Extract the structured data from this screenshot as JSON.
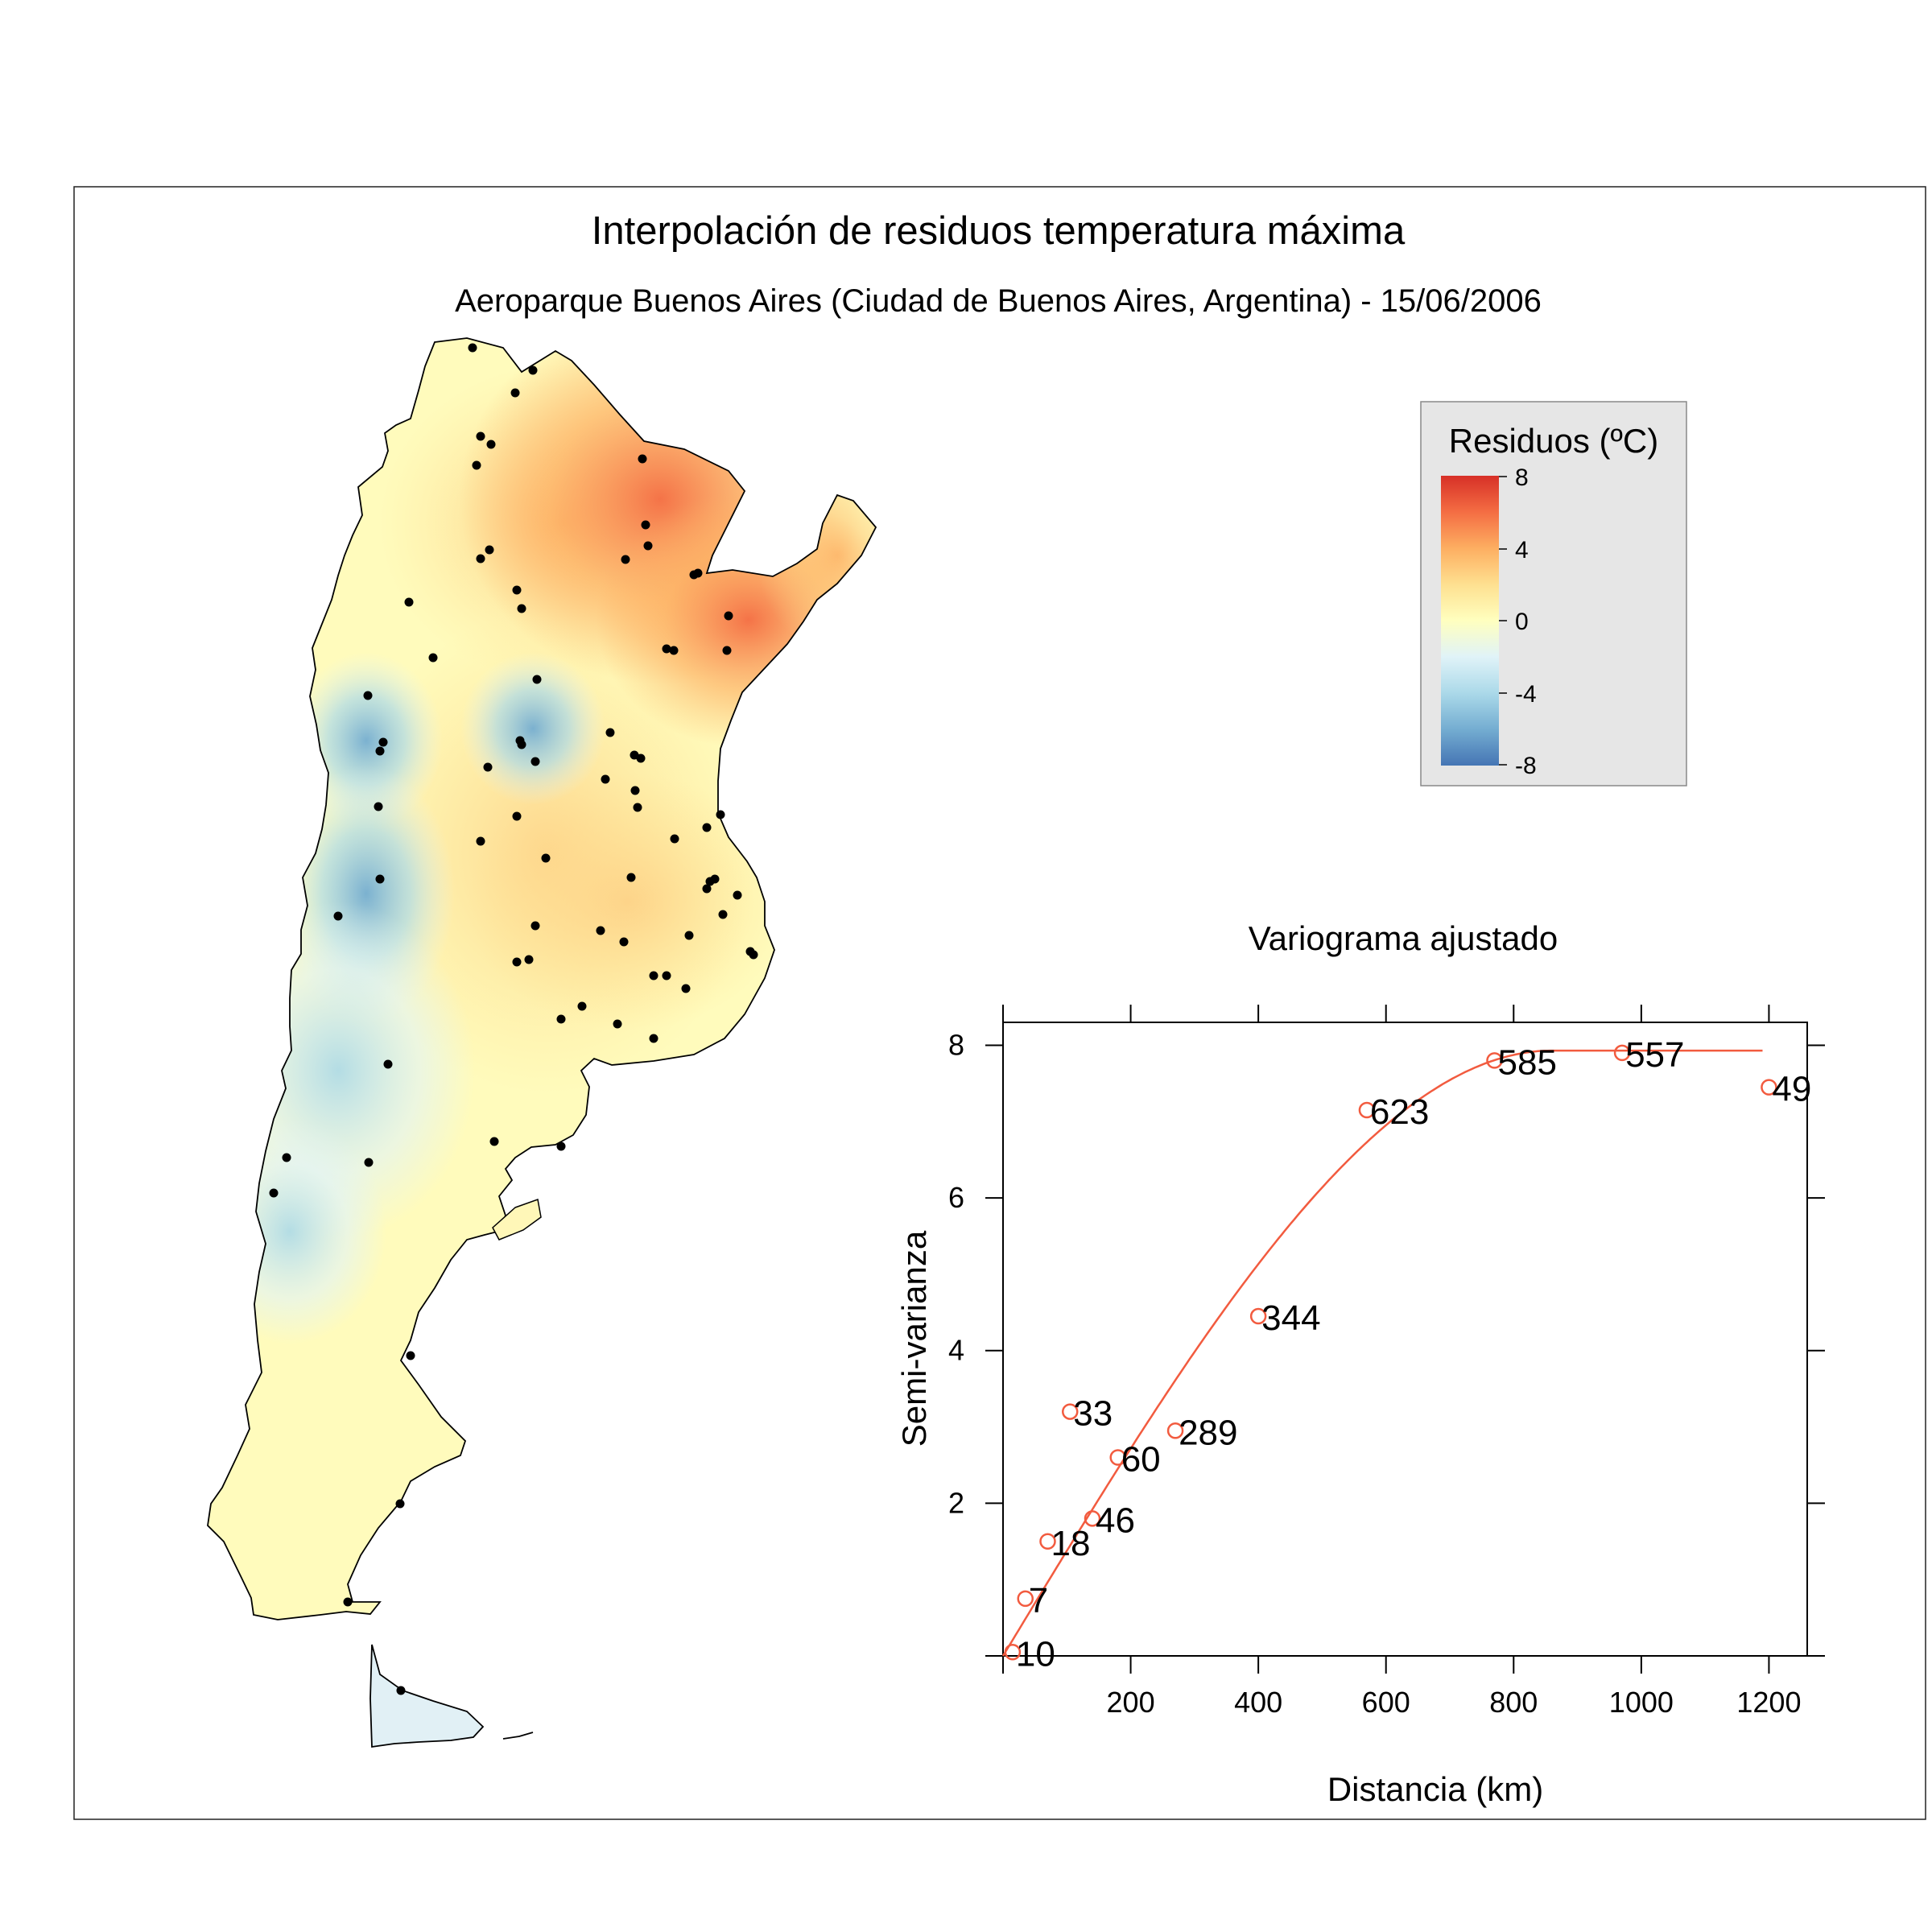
{
  "title": "Interpolación de residuos temperatura máxima",
  "subtitle": "Aeroparque Buenos Aires (Ciudad de Buenos Aires, Argentina) - 15/06/2006",
  "legend": {
    "title": "Residuos (ºC)",
    "ticks": [
      "8",
      "4",
      "0",
      "-4",
      "-8"
    ],
    "colors": [
      "#d73027",
      "#f46d43",
      "#fdae61",
      "#fee090",
      "#ffffbf",
      "#e0f3f8",
      "#abd9e9",
      "#74add1",
      "#4575b4"
    ]
  },
  "colors": {
    "series": "#f25b3f",
    "stations": "#000000",
    "map_outline": "#000000"
  },
  "chart_data": [
    {
      "type": "heatmap",
      "title": "Interpolación de residuos temperatura máxima",
      "subtitle": "Aeroparque Buenos Aires (Ciudad de Buenos Aires, Argentina) - 15/06/2006",
      "legend_title": "Residuos (ºC)",
      "scale_range": [
        -8,
        8
      ],
      "legend_placement": "top-right",
      "hotspots": [
        {
          "region": "north-east",
          "value": 6
        },
        {
          "region": "north-central",
          "value": -5
        },
        {
          "region": "west-central",
          "value": -4
        },
        {
          "region": "center",
          "value": 2
        }
      ]
    },
    {
      "type": "scatter",
      "title": "Variograma ajustado",
      "xlabel": "Distancia (km)",
      "ylabel": "Semi-varianza",
      "xticks": [
        200,
        400,
        600,
        800,
        1000,
        1200
      ],
      "yticks": [
        2,
        4,
        6,
        8
      ],
      "xlim": [
        0,
        1260
      ],
      "ylim": [
        0,
        8.3
      ],
      "points": [
        {
          "x": 15,
          "y": 0.05,
          "label": "10"
        },
        {
          "x": 35,
          "y": 0.75,
          "label": "7"
        },
        {
          "x": 70,
          "y": 1.5,
          "label": "18"
        },
        {
          "x": 105,
          "y": 3.2,
          "label": "33"
        },
        {
          "x": 140,
          "y": 1.8,
          "label": "46"
        },
        {
          "x": 180,
          "y": 2.6,
          "label": "60"
        },
        {
          "x": 270,
          "y": 2.95,
          "label": "289"
        },
        {
          "x": 400,
          "y": 4.45,
          "label": "344"
        },
        {
          "x": 570,
          "y": 7.15,
          "label": "623"
        },
        {
          "x": 770,
          "y": 7.8,
          "label": "585"
        },
        {
          "x": 970,
          "y": 7.9,
          "label": "557"
        },
        {
          "x": 1200,
          "y": 7.45,
          "label": "49"
        }
      ],
      "fit": {
        "model": "spherical",
        "nugget": 0,
        "sill": 7.93,
        "range": 860,
        "x_max": 1190
      }
    }
  ]
}
